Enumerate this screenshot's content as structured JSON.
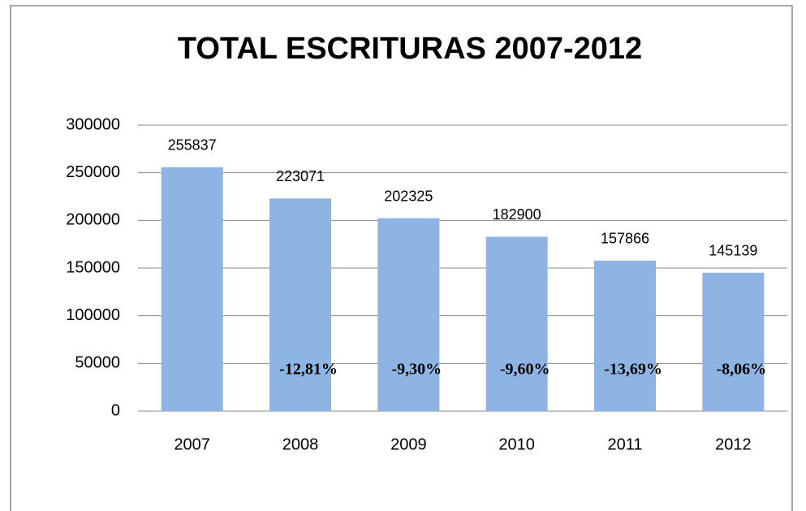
{
  "chart_data": {
    "type": "bar",
    "title": "TOTAL ESCRITURAS 2007-2012",
    "categories": [
      "2007",
      "2008",
      "2009",
      "2010",
      "2011",
      "2012"
    ],
    "values": [
      255837,
      223071,
      202325,
      182900,
      157866,
      145139
    ],
    "annotations": [
      null,
      "-12,81%",
      "-9,30%",
      "-9,60%",
      "-13,69%",
      "-8,06%"
    ],
    "color": "#8eb4e3",
    "ylim": [
      0,
      300000
    ],
    "yticks": [
      0,
      50000,
      100000,
      150000,
      200000,
      250000,
      300000
    ],
    "grid": true
  }
}
